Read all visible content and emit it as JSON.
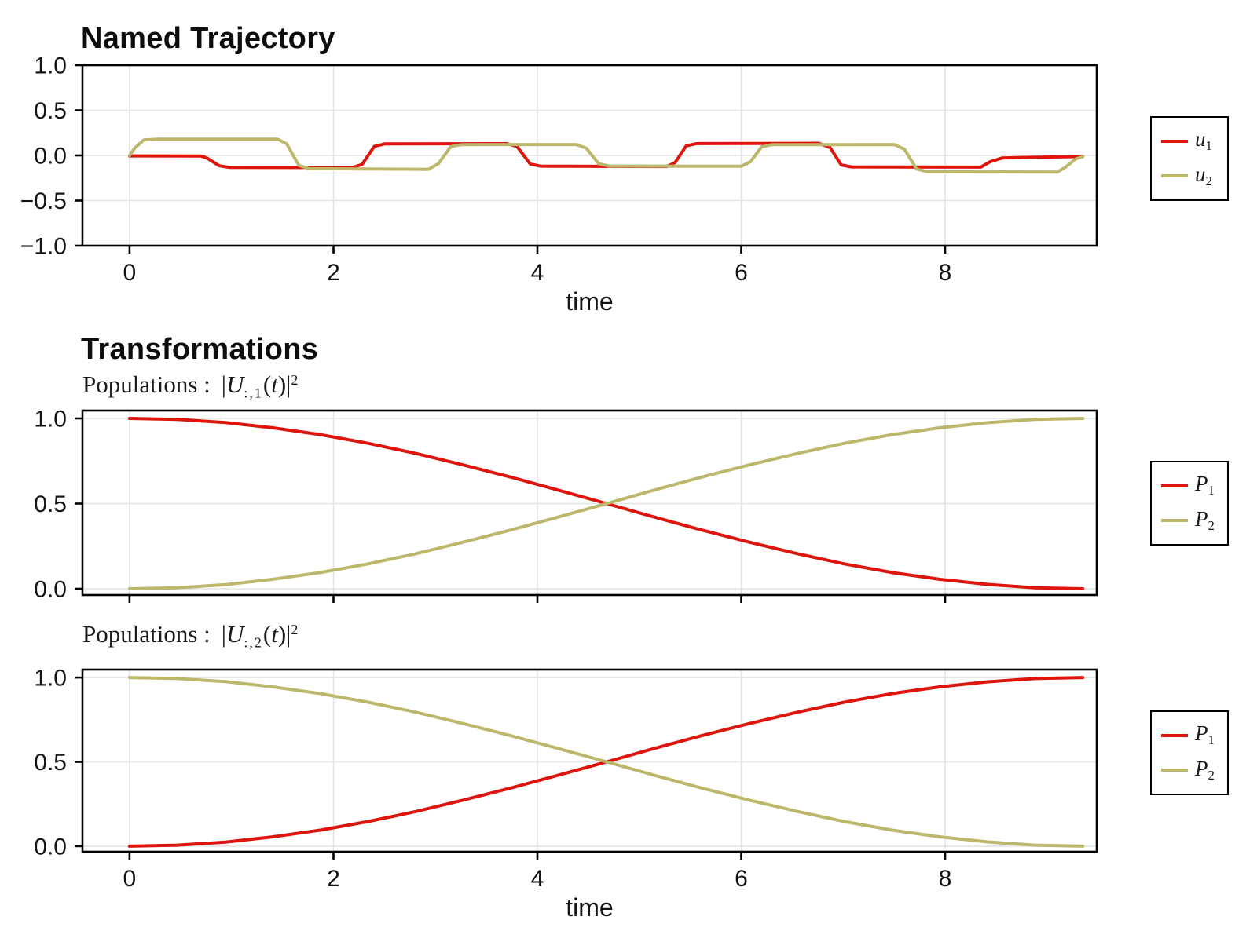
{
  "colors": {
    "series1": "#DD150C",
    "series2": "#BDB76B",
    "grid": "#E4E4E4",
    "frame": "#000000",
    "text": "#141414"
  },
  "panels": [
    {
      "title": "Named Trajectory",
      "legend": {
        "entries": [
          {
            "color_key": "series1",
            "label_parts": [
              {
                "text": "u",
                "style": "italic"
              },
              {
                "text": "1",
                "style": "sub"
              }
            ]
          },
          {
            "color_key": "series2",
            "label_parts": [
              {
                "text": "u",
                "style": "italic"
              },
              {
                "text": "2",
                "style": "sub"
              }
            ]
          }
        ]
      }
    },
    {
      "title": "Transformations",
      "subtitle": {
        "parts": [
          {
            "text": "Populations :",
            "style": "plain"
          },
          {
            "text": "|",
            "style": "plain"
          },
          {
            "text": "U",
            "style": "italic"
          },
          {
            "text": ":,1",
            "style": "sub"
          },
          {
            "text": "(",
            "style": "plain"
          },
          {
            "text": "t",
            "style": "italic"
          },
          {
            "text": ")|",
            "style": "plain"
          },
          {
            "text": "2",
            "style": "sup"
          }
        ]
      },
      "legend": {
        "entries": [
          {
            "color_key": "series1",
            "label_parts": [
              {
                "text": "P",
                "style": "italic"
              },
              {
                "text": "1",
                "style": "sub"
              }
            ]
          },
          {
            "color_key": "series2",
            "label_parts": [
              {
                "text": "P",
                "style": "italic"
              },
              {
                "text": "2",
                "style": "sub"
              }
            ]
          }
        ]
      }
    },
    {
      "subtitle": {
        "parts": [
          {
            "text": "Populations :",
            "style": "plain"
          },
          {
            "text": "|",
            "style": "plain"
          },
          {
            "text": "U",
            "style": "italic"
          },
          {
            "text": ":,2",
            "style": "sub"
          },
          {
            "text": "(",
            "style": "plain"
          },
          {
            "text": "t",
            "style": "italic"
          },
          {
            "text": ")|",
            "style": "plain"
          },
          {
            "text": "2",
            "style": "sup"
          }
        ]
      },
      "legend": {
        "entries": [
          {
            "color_key": "series1",
            "label_parts": [
              {
                "text": "P",
                "style": "italic"
              },
              {
                "text": "1",
                "style": "sub"
              }
            ]
          },
          {
            "color_key": "series2",
            "label_parts": [
              {
                "text": "P",
                "style": "italic"
              },
              {
                "text": "2",
                "style": "sub"
              }
            ]
          }
        ]
      }
    }
  ],
  "chart_data": [
    {
      "id": "trajectory",
      "type": "line",
      "title": "Named Trajectory",
      "xlabel": "time",
      "ylabel": "",
      "xlim": [
        -0.462,
        9.487
      ],
      "ylim": [
        -1.0,
        1.0
      ],
      "grid": true,
      "legend_position": "right-outside",
      "show_xtick_labels": true,
      "xticks": [
        {
          "v": 0,
          "label": "0"
        },
        {
          "v": 2,
          "label": "2"
        },
        {
          "v": 4,
          "label": "4"
        },
        {
          "v": 6,
          "label": "6"
        },
        {
          "v": 8,
          "label": "8"
        }
      ],
      "yticks": [
        {
          "v": 1.0,
          "label": "1.0"
        },
        {
          "v": 0.5,
          "label": "0.5"
        },
        {
          "v": 0.0,
          "label": "0.0"
        },
        {
          "v": -0.5,
          "label": "−0.5"
        },
        {
          "v": -1.0,
          "label": "−1.0"
        }
      ],
      "series": [
        {
          "name": "u1",
          "color_key": "series1",
          "points": [
            [
              0,
              -0.005
            ],
            [
              0.7,
              -0.007
            ],
            [
              0.76,
              -0.03
            ],
            [
              0.88,
              -0.115
            ],
            [
              0.98,
              -0.132
            ],
            [
              2.18,
              -0.135
            ],
            [
              2.28,
              -0.1
            ],
            [
              2.4,
              0.1
            ],
            [
              2.5,
              0.128
            ],
            [
              3.7,
              0.13
            ],
            [
              3.8,
              0.1
            ],
            [
              3.93,
              -0.095
            ],
            [
              4.03,
              -0.118
            ],
            [
              5.27,
              -0.123
            ],
            [
              5.35,
              -0.08
            ],
            [
              5.46,
              0.105
            ],
            [
              5.56,
              0.131
            ],
            [
              6.76,
              0.135
            ],
            [
              6.87,
              0.09
            ],
            [
              6.98,
              -0.105
            ],
            [
              7.08,
              -0.127
            ],
            [
              8.35,
              -0.13
            ],
            [
              8.44,
              -0.07
            ],
            [
              8.56,
              -0.028
            ],
            [
              8.8,
              -0.022
            ],
            [
              9.35,
              -0.012
            ]
          ]
        },
        {
          "name": "u2",
          "color_key": "series2",
          "points": [
            [
              0,
              0.0
            ],
            [
              0.05,
              0.08
            ],
            [
              0.14,
              0.172
            ],
            [
              0.28,
              0.181
            ],
            [
              1.45,
              0.181
            ],
            [
              1.54,
              0.13
            ],
            [
              1.66,
              -0.11
            ],
            [
              1.76,
              -0.147
            ],
            [
              2.93,
              -0.154
            ],
            [
              3.03,
              -0.09
            ],
            [
              3.15,
              0.098
            ],
            [
              3.26,
              0.12
            ],
            [
              4.38,
              0.121
            ],
            [
              4.48,
              0.08
            ],
            [
              4.6,
              -0.09
            ],
            [
              4.7,
              -0.117
            ],
            [
              6.0,
              -0.12
            ],
            [
              6.09,
              -0.07
            ],
            [
              6.2,
              0.095
            ],
            [
              6.3,
              0.119
            ],
            [
              7.5,
              0.121
            ],
            [
              7.6,
              0.07
            ],
            [
              7.72,
              -0.15
            ],
            [
              7.83,
              -0.182
            ],
            [
              9.1,
              -0.184
            ],
            [
              9.18,
              -0.13
            ],
            [
              9.28,
              -0.04
            ],
            [
              9.35,
              -0.013
            ]
          ]
        }
      ]
    },
    {
      "id": "populations1",
      "type": "line",
      "title": "Populations : |U:,1(t)|^2",
      "xlabel": "",
      "ylabel": "",
      "xlim": [
        -0.462,
        9.487
      ],
      "ylim": [
        -0.037,
        1.046
      ],
      "grid": true,
      "legend_position": "right-outside",
      "show_xtick_labels": false,
      "xticks": [
        {
          "v": 0,
          "label": "0"
        },
        {
          "v": 2,
          "label": "2"
        },
        {
          "v": 4,
          "label": "4"
        },
        {
          "v": 6,
          "label": "6"
        },
        {
          "v": 8,
          "label": "8"
        }
      ],
      "yticks": [
        {
          "v": 1.0,
          "label": "1.0"
        },
        {
          "v": 0.5,
          "label": "0.5"
        },
        {
          "v": 0.0,
          "label": "0.0"
        }
      ],
      "series": [
        {
          "name": "P1",
          "color_key": "series1",
          "points": [
            [
              0,
              1.0
            ],
            [
              0.47,
              0.994
            ],
            [
              0.94,
              0.976
            ],
            [
              1.4,
              0.945
            ],
            [
              1.87,
              0.905
            ],
            [
              2.34,
              0.854
            ],
            [
              2.81,
              0.794
            ],
            [
              3.27,
              0.727
            ],
            [
              3.74,
              0.655
            ],
            [
              4.21,
              0.578
            ],
            [
              4.68,
              0.5
            ],
            [
              5.14,
              0.422
            ],
            [
              5.61,
              0.345
            ],
            [
              6.08,
              0.273
            ],
            [
              6.55,
              0.206
            ],
            [
              7.01,
              0.146
            ],
            [
              7.48,
              0.095
            ],
            [
              7.95,
              0.055
            ],
            [
              8.42,
              0.025
            ],
            [
              8.88,
              0.006
            ],
            [
              9.35,
              0.0
            ]
          ]
        },
        {
          "name": "P2",
          "color_key": "series2",
          "points": [
            [
              0,
              0.0
            ],
            [
              0.47,
              0.006
            ],
            [
              0.94,
              0.024
            ],
            [
              1.4,
              0.055
            ],
            [
              1.87,
              0.095
            ],
            [
              2.34,
              0.146
            ],
            [
              2.81,
              0.206
            ],
            [
              3.27,
              0.273
            ],
            [
              3.74,
              0.345
            ],
            [
              4.21,
              0.422
            ],
            [
              4.68,
              0.5
            ],
            [
              5.14,
              0.578
            ],
            [
              5.61,
              0.655
            ],
            [
              6.08,
              0.727
            ],
            [
              6.55,
              0.794
            ],
            [
              7.01,
              0.854
            ],
            [
              7.48,
              0.905
            ],
            [
              7.95,
              0.945
            ],
            [
              8.42,
              0.975
            ],
            [
              8.88,
              0.994
            ],
            [
              9.35,
              1.0
            ]
          ]
        }
      ]
    },
    {
      "id": "populations2",
      "type": "line",
      "title": "Populations : |U:,2(t)|^2",
      "xlabel": "time",
      "ylabel": "",
      "xlim": [
        -0.462,
        9.487
      ],
      "ylim": [
        -0.033,
        1.047
      ],
      "grid": true,
      "legend_position": "right-outside",
      "show_xtick_labels": true,
      "xticks": [
        {
          "v": 0,
          "label": "0"
        },
        {
          "v": 2,
          "label": "2"
        },
        {
          "v": 4,
          "label": "4"
        },
        {
          "v": 6,
          "label": "6"
        },
        {
          "v": 8,
          "label": "8"
        }
      ],
      "yticks": [
        {
          "v": 1.0,
          "label": "1.0"
        },
        {
          "v": 0.5,
          "label": "0.5"
        },
        {
          "v": 0.0,
          "label": "0.0"
        }
      ],
      "series": [
        {
          "name": "P1",
          "color_key": "series1",
          "points": [
            [
              0,
              0.0
            ],
            [
              0.47,
              0.006
            ],
            [
              0.94,
              0.024
            ],
            [
              1.4,
              0.055
            ],
            [
              1.87,
              0.095
            ],
            [
              2.34,
              0.146
            ],
            [
              2.81,
              0.206
            ],
            [
              3.27,
              0.273
            ],
            [
              3.74,
              0.345
            ],
            [
              4.21,
              0.422
            ],
            [
              4.68,
              0.5
            ],
            [
              5.14,
              0.578
            ],
            [
              5.61,
              0.655
            ],
            [
              6.08,
              0.727
            ],
            [
              6.55,
              0.794
            ],
            [
              7.01,
              0.854
            ],
            [
              7.48,
              0.905
            ],
            [
              7.95,
              0.945
            ],
            [
              8.42,
              0.975
            ],
            [
              8.88,
              0.994
            ],
            [
              9.35,
              1.0
            ]
          ]
        },
        {
          "name": "P2",
          "color_key": "series2",
          "points": [
            [
              0,
              1.0
            ],
            [
              0.47,
              0.994
            ],
            [
              0.94,
              0.976
            ],
            [
              1.4,
              0.945
            ],
            [
              1.87,
              0.905
            ],
            [
              2.34,
              0.854
            ],
            [
              2.81,
              0.794
            ],
            [
              3.27,
              0.727
            ],
            [
              3.74,
              0.655
            ],
            [
              4.21,
              0.578
            ],
            [
              4.68,
              0.5
            ],
            [
              5.14,
              0.422
            ],
            [
              5.61,
              0.345
            ],
            [
              6.08,
              0.273
            ],
            [
              6.55,
              0.206
            ],
            [
              7.01,
              0.146
            ],
            [
              7.48,
              0.095
            ],
            [
              7.95,
              0.055
            ],
            [
              8.42,
              0.025
            ],
            [
              8.88,
              0.006
            ],
            [
              9.35,
              0.0
            ]
          ]
        }
      ]
    }
  ]
}
